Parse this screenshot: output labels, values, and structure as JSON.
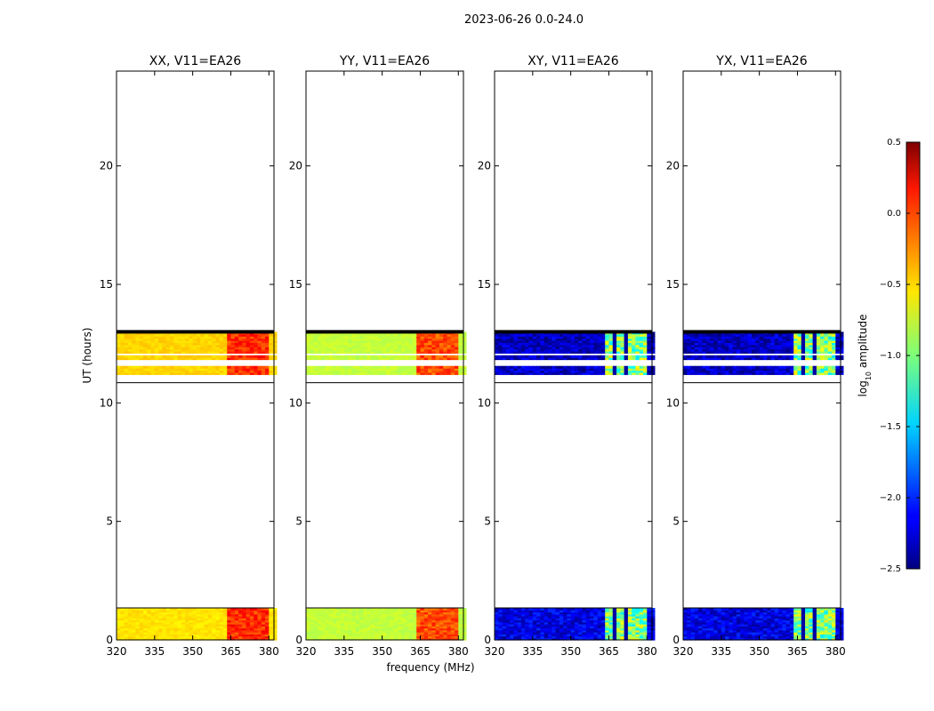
{
  "suptitle": "2023-06-26 0.0-24.0",
  "xlabel": "frequency (MHz)",
  "ylabel": "UT (hours)",
  "colorbar": {
    "label_main": "log",
    "label_sub": "10",
    "label_rest": " amplitude",
    "range": [
      -2.5,
      0.5
    ],
    "ticks": [
      "0.5",
      "0.0",
      "−0.5",
      "−1.0",
      "−1.5",
      "−2.0",
      "−2.5"
    ],
    "colormap": "jet"
  },
  "chart_data": {
    "type": "heatmap",
    "xlim": [
      320,
      382
    ],
    "ylim": [
      0,
      24
    ],
    "xticks": [
      "320",
      "335",
      "350",
      "365",
      "380"
    ],
    "yticks": [
      "0",
      "5",
      "10",
      "15",
      "20"
    ],
    "data_bands_hours": [
      [
        0.0,
        1.35
      ],
      [
        11.2,
        13.0
      ]
    ],
    "separator_hours": 10.85,
    "panels": [
      {
        "title": "XX, V11=EA26",
        "estimated_level_low_band": -0.55,
        "estimated_level_high_band": -0.5,
        "estimated_level_365_380MHz": 0.0
      },
      {
        "title": "YY, V11=EA26",
        "estimated_level_low_band": -0.8,
        "estimated_level_high_band": -0.8,
        "estimated_level_365_380MHz": -0.1
      },
      {
        "title": "XY, V11=EA26",
        "estimated_level_low_band": -2.2,
        "estimated_level_high_band": -2.3,
        "estimated_level_365_380MHz": -1.0
      },
      {
        "title": "YX, V11=EA26",
        "estimated_level_low_band": -2.2,
        "estimated_level_high_band": -2.3,
        "estimated_level_365_380MHz": -1.0
      }
    ]
  }
}
